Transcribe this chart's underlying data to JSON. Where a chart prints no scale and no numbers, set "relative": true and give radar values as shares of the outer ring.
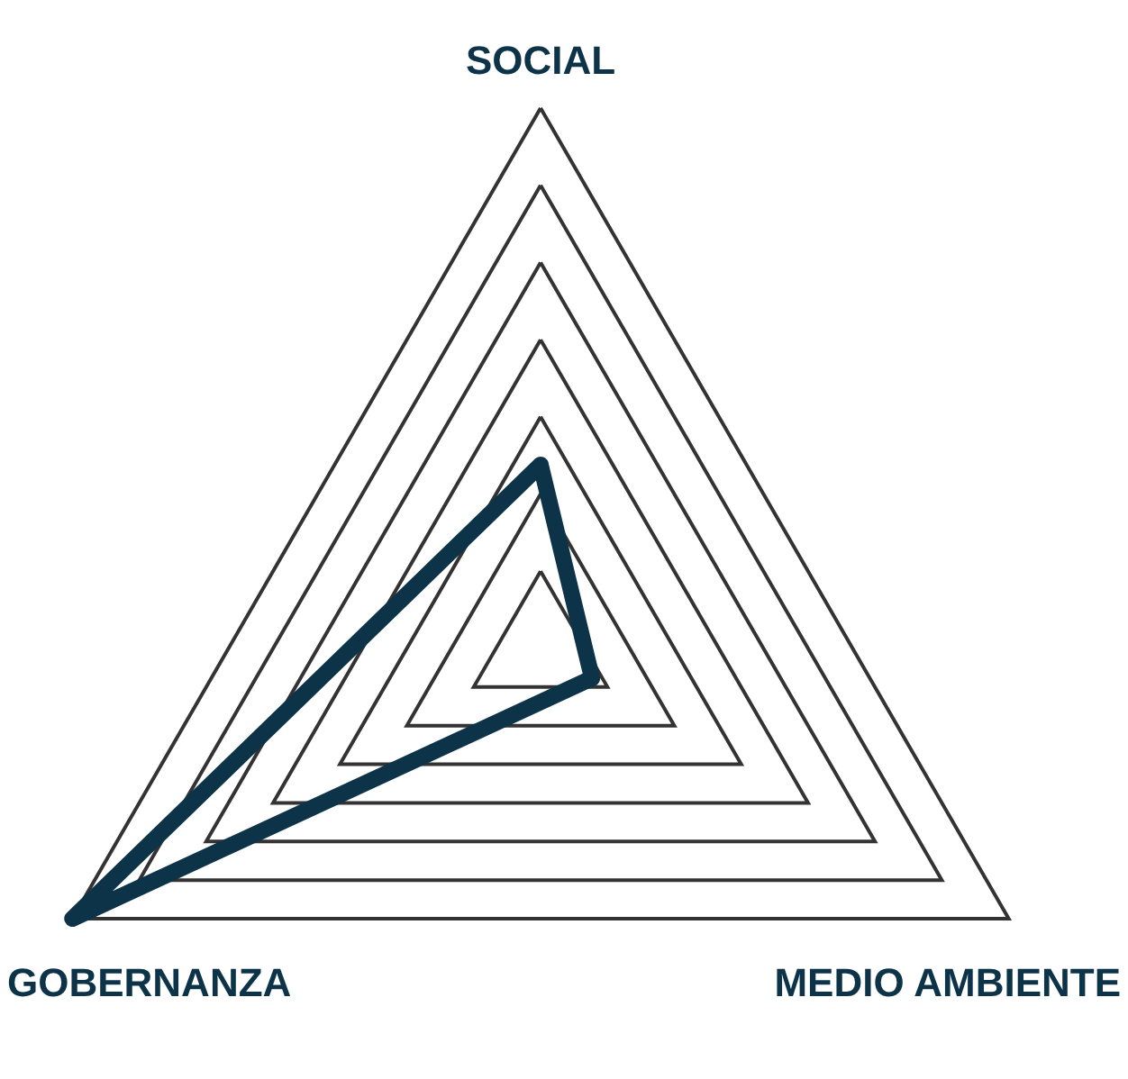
{
  "chart_data": {
    "type": "radar",
    "relative": true,
    "categories": [
      "SOCIAL",
      "MEDIO AMBIENTE",
      "GOBERNANZA"
    ],
    "series": [
      {
        "color": "#0d3349",
        "values": [
          0.34,
          0.11,
          1.0
        ]
      }
    ]
  }
}
